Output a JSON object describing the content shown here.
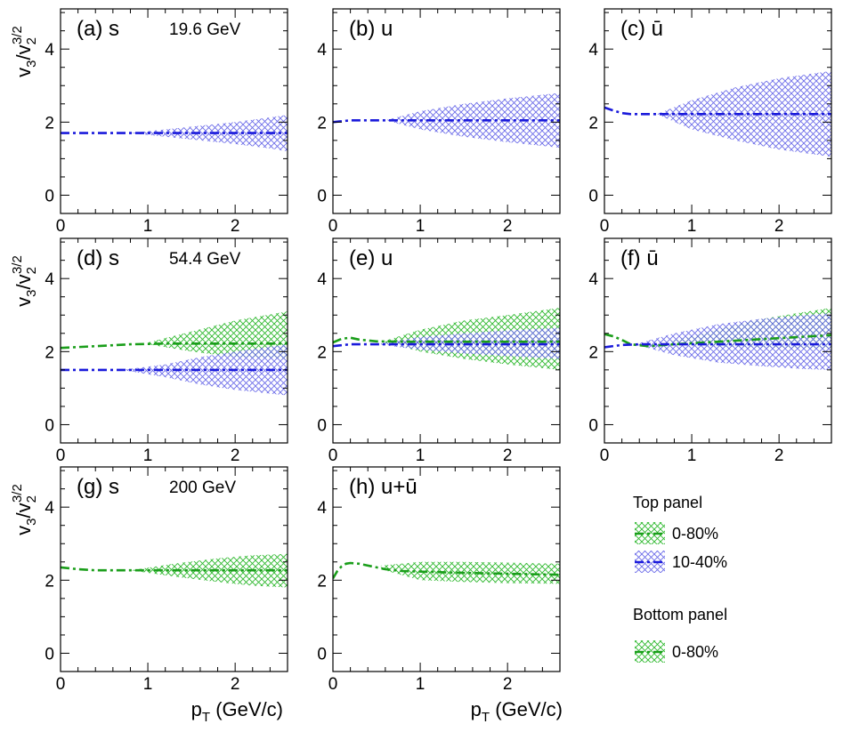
{
  "chart_data": {
    "type": "line",
    "x_axis": {
      "label": "p_T (GeV/c)",
      "label_main": "p",
      "label_sub": "T",
      "label_rest": "(GeV/c)",
      "xlim": [
        0,
        2.6
      ],
      "ticks": [
        "0",
        "1",
        "2"
      ]
    },
    "y_axis": {
      "label": "v_3/v_2^{3/2}",
      "ylim": [
        -0.5,
        5.1
      ],
      "ticks": [
        "0",
        "2",
        "4"
      ]
    },
    "colors": {
      "green": "#1a9e1a",
      "blue": "#1a1adb",
      "green_fill": "#2eb82e",
      "blue_fill": "#6b6be8"
    },
    "panels": [
      {
        "id": "a",
        "label": "(a) s",
        "energy": "19.6 GeV",
        "series": [
          {
            "name": "10-40%",
            "color": "blue",
            "x": [
              0.0,
              0.8,
              2.6
            ],
            "y": [
              1.7,
              1.7,
              1.7
            ],
            "band": {
              "x": [
                0.8,
                1.2,
                1.6,
                2.0,
                2.4,
                2.6
              ],
              "low": [
                1.7,
                1.6,
                1.5,
                1.4,
                1.28,
                1.2
              ],
              "high": [
                1.7,
                1.8,
                1.9,
                2.0,
                2.13,
                2.2
              ]
            }
          }
        ]
      },
      {
        "id": "b",
        "label": "(b) u",
        "energy": "",
        "series": [
          {
            "name": "10-40%",
            "color": "blue",
            "x": [
              0.0,
              0.2,
              0.6,
              2.6
            ],
            "y": [
              2.0,
              2.05,
              2.05,
              2.05
            ],
            "band": {
              "x": [
                0.6,
                1.0,
                1.5,
                2.0,
                2.6
              ],
              "low": [
                2.05,
                1.8,
                1.6,
                1.45,
                1.3
              ],
              "high": [
                2.05,
                2.3,
                2.5,
                2.65,
                2.8
              ]
            }
          }
        ]
      },
      {
        "id": "c",
        "label": "(c) ū",
        "energy": "",
        "series": [
          {
            "name": "10-40%",
            "color": "blue",
            "x": [
              0.0,
              0.1,
              0.2,
              0.3,
              0.6,
              2.6
            ],
            "y": [
              2.4,
              2.32,
              2.25,
              2.22,
              2.22,
              2.22
            ],
            "band": {
              "x": [
                0.6,
                1.0,
                1.5,
                2.0,
                2.6
              ],
              "low": [
                2.22,
                1.8,
                1.5,
                1.25,
                1.05
              ],
              "high": [
                2.22,
                2.6,
                2.95,
                3.2,
                3.4
              ]
            }
          }
        ]
      },
      {
        "id": "d",
        "label": "(d) s",
        "energy": "54.4 GeV",
        "series": [
          {
            "name": "0-80%",
            "color": "green",
            "x": [
              0.0,
              0.4,
              0.8,
              1.2,
              2.6
            ],
            "y": [
              2.1,
              2.15,
              2.2,
              2.22,
              2.22
            ],
            "band": {
              "x": [
                1.0,
                1.5,
                2.0,
                2.6
              ],
              "low": [
                2.2,
                2.0,
                1.85,
                1.8
              ],
              "high": [
                2.25,
                2.55,
                2.85,
                3.1
              ]
            }
          },
          {
            "name": "10-40%",
            "color": "blue",
            "x": [
              0.0,
              0.8,
              2.6
            ],
            "y": [
              1.5,
              1.5,
              1.5
            ],
            "band": {
              "x": [
                0.7,
                1.2,
                1.6,
                2.0,
                2.6
              ],
              "low": [
                1.5,
                1.3,
                1.1,
                0.95,
                0.8
              ],
              "high": [
                1.5,
                1.65,
                1.85,
                2.0,
                2.2
              ]
            }
          }
        ]
      },
      {
        "id": "e",
        "label": "(e) u",
        "energy": "",
        "series": [
          {
            "name": "0-80%",
            "color": "green",
            "x": [
              0.0,
              0.1,
              0.2,
              0.3,
              0.5,
              0.8,
              2.6
            ],
            "y": [
              2.25,
              2.35,
              2.38,
              2.33,
              2.28,
              2.27,
              2.27
            ],
            "band": {
              "x": [
                0.6,
                1.0,
                1.5,
                2.0,
                2.6
              ],
              "low": [
                2.25,
                2.0,
                1.8,
                1.65,
                1.5
              ],
              "high": [
                2.3,
                2.6,
                2.85,
                3.0,
                3.2
              ]
            }
          },
          {
            "name": "10-40%",
            "color": "blue",
            "x": [
              0.0,
              0.2,
              0.6,
              2.6
            ],
            "y": [
              2.15,
              2.2,
              2.2,
              2.2
            ],
            "band": {
              "x": [
                0.5,
                1.0,
                1.5,
                2.0,
                2.6
              ],
              "low": [
                2.2,
                2.05,
                1.95,
                1.88,
                1.8
              ],
              "high": [
                2.2,
                2.4,
                2.5,
                2.58,
                2.65
              ]
            }
          }
        ]
      },
      {
        "id": "f",
        "label": "(f) ū",
        "energy": "",
        "series": [
          {
            "name": "0-80%",
            "color": "green",
            "x": [
              0.0,
              0.1,
              0.2,
              0.3,
              0.5,
              0.8,
              1.5,
              2.6
            ],
            "y": [
              2.48,
              2.42,
              2.32,
              2.2,
              2.15,
              2.2,
              2.3,
              2.45
            ],
            "band": {
              "x": [
                0.7,
                1.2,
                1.7,
                2.2,
                2.6
              ],
              "low": [
                2.2,
                2.15,
                2.12,
                2.1,
                2.1
              ],
              "high": [
                2.25,
                2.55,
                2.85,
                3.05,
                3.2
              ]
            }
          },
          {
            "name": "10-40%",
            "color": "blue",
            "x": [
              0.0,
              0.2,
              0.4,
              2.6
            ],
            "y": [
              2.12,
              2.18,
              2.2,
              2.2
            ],
            "band": {
              "x": [
                0.35,
                0.8,
                1.3,
                1.8,
                2.3,
                2.6
              ],
              "low": [
                2.2,
                1.9,
                1.7,
                1.6,
                1.52,
                1.5
              ],
              "high": [
                2.2,
                2.5,
                2.75,
                2.9,
                3.0,
                3.05
              ]
            }
          }
        ]
      },
      {
        "id": "g",
        "label": "(g) s",
        "energy": "200 GeV",
        "series": [
          {
            "name": "0-80%",
            "color": "green",
            "x": [
              0.0,
              0.2,
              0.4,
              0.8,
              2.6
            ],
            "y": [
              2.35,
              2.3,
              2.27,
              2.27,
              2.27
            ],
            "band": {
              "x": [
                0.8,
                1.3,
                1.8,
                2.2,
                2.6
              ],
              "low": [
                2.27,
                2.1,
                1.95,
                1.85,
                1.8
              ],
              "high": [
                2.27,
                2.45,
                2.6,
                2.68,
                2.72
              ]
            }
          }
        ]
      },
      {
        "id": "h",
        "label": "(h) u+ū",
        "energy": "",
        "series": [
          {
            "name": "0-80%",
            "color": "green",
            "x": [
              0.0,
              0.05,
              0.1,
              0.15,
              0.2,
              0.3,
              0.4,
              0.5,
              0.6,
              0.8,
              1.5,
              2.6
            ],
            "y": [
              2.05,
              2.25,
              2.38,
              2.45,
              2.47,
              2.45,
              2.4,
              2.35,
              2.3,
              2.25,
              2.2,
              2.15
            ],
            "band": {
              "x": [
                0.55,
                1.0,
                1.5,
                2.0,
                2.6
              ],
              "low": [
                2.3,
                2.0,
                1.95,
                1.92,
                1.9
              ],
              "high": [
                2.4,
                2.5,
                2.5,
                2.48,
                2.45
              ]
            }
          }
        ]
      }
    ],
    "legend": {
      "top_title": "Top panel",
      "top_entries": [
        {
          "label": "0-80%",
          "color": "green"
        },
        {
          "label": "10-40%",
          "color": "blue"
        }
      ],
      "bottom_title": "Bottom panel",
      "bottom_entries": [
        {
          "label": "0-80%",
          "color": "green"
        }
      ]
    }
  }
}
